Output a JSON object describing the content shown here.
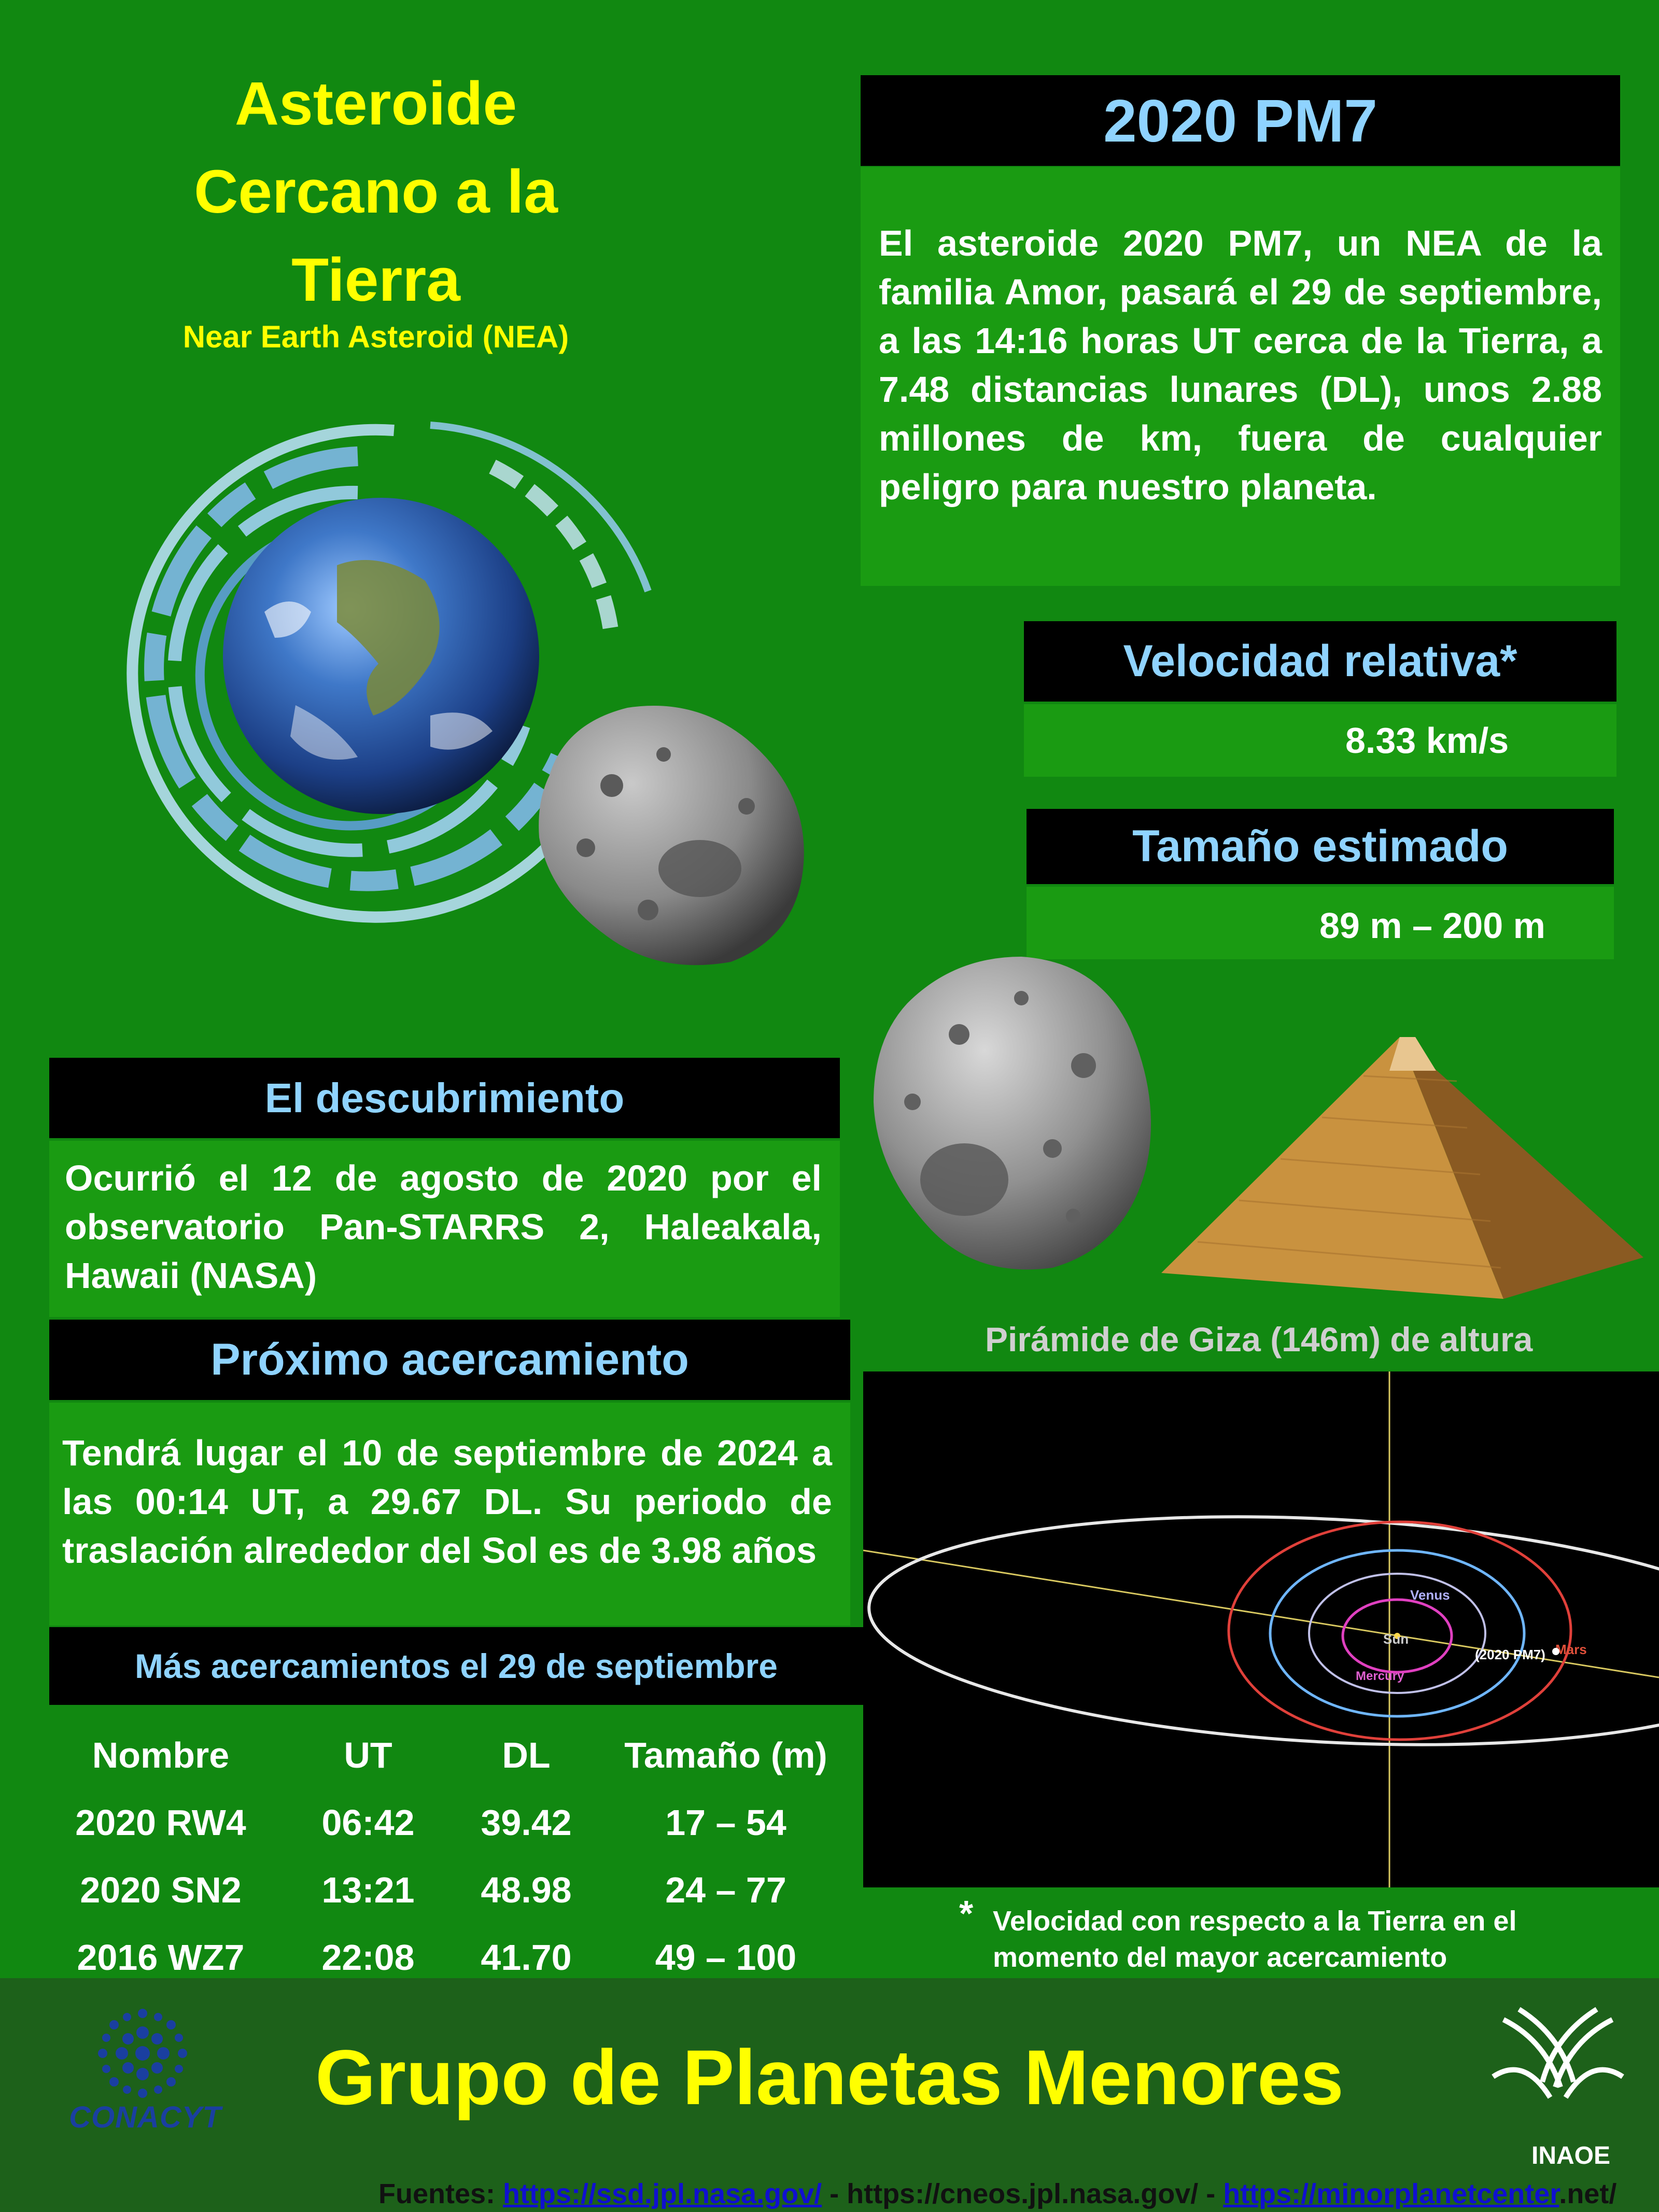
{
  "title": {
    "line1": "Asteroide",
    "line2": "Cercano a la",
    "line3": "Tierra",
    "subtitle": "Near Earth Asteroid (NEA)"
  },
  "asteroid": {
    "name": "2020 PM7",
    "description": "El asteroide 2020 PM7, un NEA de la familia Amor, pasará el 29 de septiembre, a las 14:16 horas UT cerca de la Tierra, a 7.48 distancias lunares (DL), unos 2.88 millones de km, fuera de cualquier peligro para nuestro planeta."
  },
  "velocity": {
    "label": "Velocidad relativa*",
    "value": "8.33 km/s"
  },
  "size": {
    "label": "Tamaño estimado",
    "value": "89 m – 200 m"
  },
  "discovery": {
    "label": "El descubrimiento",
    "text": "Ocurrió el 12 de agosto de 2020 por el observatorio Pan-STARRS 2, Haleakala, Hawaii (NASA)"
  },
  "next_approach": {
    "label": "Próximo acercamiento",
    "text": "Tendrá lugar el 10 de septiembre de 2024 a las 00:14 UT, a 29.67 DL. Su periodo de traslación alrededor del Sol es de 3.98 años"
  },
  "more_approaches": {
    "label": "Más acercamientos el 29 de septiembre",
    "headers": [
      "Nombre",
      "UT",
      "DL",
      "Tamaño (m)"
    ],
    "rows": [
      [
        "2020 RW4",
        "06:42",
        "39.42",
        "17 – 54"
      ],
      [
        "2020 SN2",
        "13:21",
        "48.98",
        "24 – 77"
      ],
      [
        "2016 WZ7",
        "22:08",
        "41.70",
        "49 – 100"
      ]
    ]
  },
  "pyramid_caption": "Pirámide de Giza (146m) de altura",
  "orbit_labels": {
    "venus": "Venus",
    "sun": "Sun",
    "mercury": "Mercury",
    "asteroid": "(2020 PM7)",
    "mars": "Mars"
  },
  "footnote": {
    "star": "*",
    "text": "Velocidad con respecto a la Tierra en el momento del mayor acercamiento"
  },
  "footer": {
    "title": "Grupo de Planetas Menores",
    "conacyt": "CONACYT",
    "inaoe": "INAOE",
    "sources_prefix": "Fuentes: ",
    "source1": "https://ssd.jpl.nasa.gov/",
    "sep1": " - https://cneos.jpl.nasa.gov/ - ",
    "source3": "https://minorplanetcenter",
    "source3_tail": ".net/"
  },
  "colors": {
    "background": "#118811",
    "title_yellow": "#ffff00",
    "header_cyan": "#8fd3ff",
    "footer_green": "#1d611a"
  },
  "icons": [
    "earth-icon",
    "asteroid-icon",
    "pyramid-icon",
    "conacyt-logo-icon",
    "inaoe-logo-icon"
  ]
}
